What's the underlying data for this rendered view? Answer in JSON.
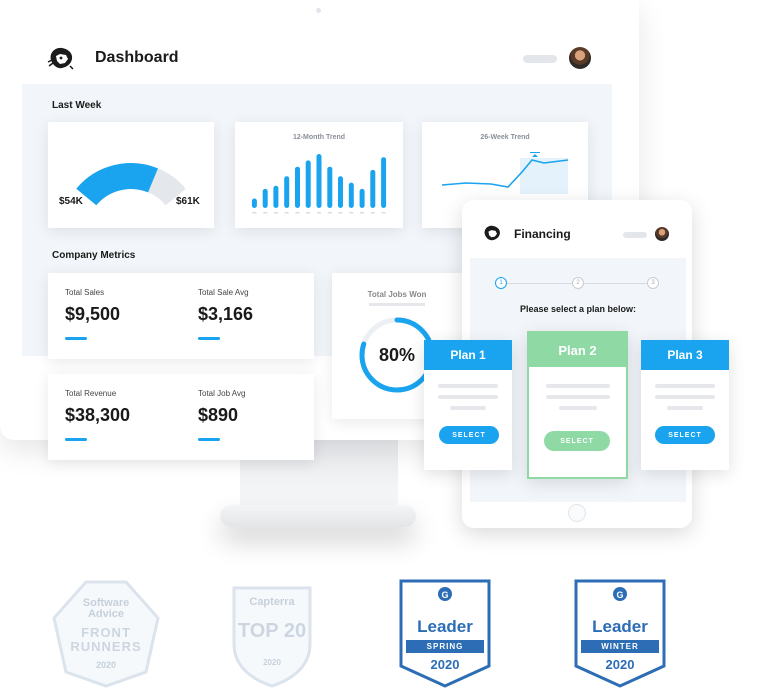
{
  "dashboard": {
    "title": "Dashboard",
    "last_week": {
      "label": "Last Week",
      "gauge": {
        "current": "$54K",
        "target": "$61K",
        "fraction": 0.88
      },
      "trend12": {
        "title": "12-Month Trend",
        "values": [
          3,
          6,
          7,
          10,
          13,
          15,
          17,
          13,
          10,
          8,
          6,
          12,
          16
        ]
      },
      "trend26": {
        "title": "26-Week Trend"
      }
    },
    "company_metrics": {
      "label": "Company Metrics",
      "total_sales": {
        "label": "Total Sales",
        "value": "$9,500"
      },
      "total_sale_avg": {
        "label": "Total Sale Avg",
        "value": "$3,166"
      },
      "total_revenue": {
        "label": "Total Revenue",
        "value": "$38,300"
      },
      "total_job_avg": {
        "label": "Total Job Avg",
        "value": "$890"
      },
      "jobs_won": {
        "label": "Total Jobs Won",
        "value": "80%",
        "fraction": 0.8
      }
    }
  },
  "financing": {
    "title": "Financing",
    "steps": [
      "1",
      "2",
      "3"
    ],
    "prompt": "Please select a plan below:",
    "plans": [
      {
        "name": "Plan 1",
        "button": "SELECT",
        "color": "#1aa3ee"
      },
      {
        "name": "Plan 2",
        "button": "SELECT",
        "color": "#8fd9a5"
      },
      {
        "name": "Plan 3",
        "button": "SELECT",
        "color": "#1aa3ee"
      }
    ]
  },
  "badges": [
    {
      "name": "Software Advice Front Runners",
      "line1": "Software",
      "line2": "Advice",
      "line3": "FRONT",
      "line4": "RUNNERS",
      "year": "2020"
    },
    {
      "name": "Capterra Top 20",
      "line1": "Capterra",
      "line2": "TOP 20",
      "year": "2020"
    },
    {
      "name": "G2 Leader Spring",
      "line1": "Leader",
      "season": "SPRING",
      "year": "2020"
    },
    {
      "name": "G2 Leader Winter",
      "line1": "Leader",
      "season": "WINTER",
      "year": "2020"
    }
  ],
  "colors": {
    "accent": "#1aa3ee",
    "green": "#8fd9a5",
    "g2": "#2c6db5"
  }
}
